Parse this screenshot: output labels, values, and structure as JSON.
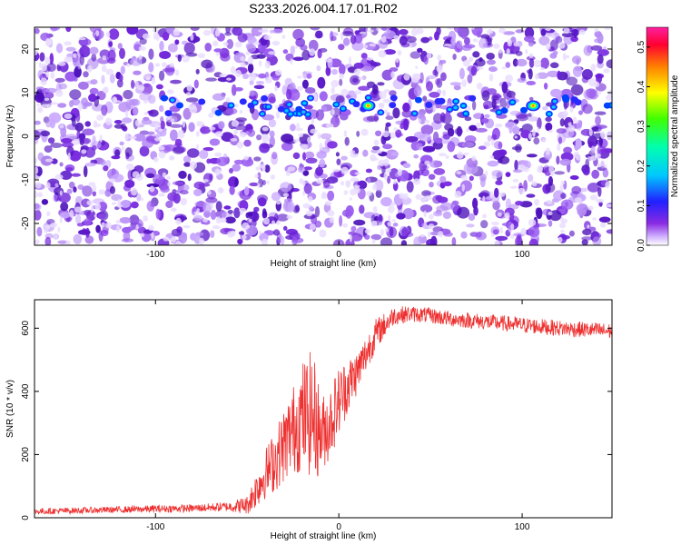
{
  "title": "S233.2026.004.17.01.R02",
  "chart_data": [
    {
      "type": "heatmap",
      "xlabel": "Height of straight line (km)",
      "ylabel": "Frequency (Hz)",
      "xlim": [
        -166,
        149
      ],
      "ylim": [
        -25,
        25
      ],
      "x_ticks": [
        -100,
        0,
        100
      ],
      "y_ticks": [
        -20,
        -10,
        0,
        10,
        20
      ],
      "colorbar": {
        "label": "Normalized spectral amplitude",
        "range": [
          0.0,
          0.55
        ],
        "ticks": [
          "0.0",
          "0.1",
          "0.2",
          "0.3",
          "0.4",
          "0.5"
        ],
        "colors": [
          "#ffffff",
          "#8a2be2",
          "#2020ff",
          "#00c8ff",
          "#00ff80",
          "#ffff00",
          "#ff8000",
          "#ff0030",
          "#ff00a0"
        ]
      },
      "features": {
        "band_frequency_hz": 7,
        "band_x_range_km": [
          -100,
          149
        ],
        "peak_points": [
          {
            "x": 16,
            "freq": 7,
            "amplitude": 0.45
          },
          {
            "x": 106,
            "freq": 7,
            "amplitude": 0.45
          }
        ]
      }
    },
    {
      "type": "line",
      "xlabel": "Height of straight line (km)",
      "ylabel": "SNR (10 * v/v)",
      "xlim": [
        -166,
        149
      ],
      "ylim": [
        0,
        690
      ],
      "x_ticks": [
        -100,
        0,
        100
      ],
      "y_ticks": [
        0,
        200,
        400,
        600
      ],
      "color": "#ff3030",
      "series": [
        {
          "x": [
            -166,
            -150,
            -125,
            -100,
            -80,
            -60,
            -50,
            -45,
            -40,
            -35,
            -30,
            -25,
            -20,
            -15,
            -12,
            -10,
            -5,
            0,
            5,
            10,
            15,
            20,
            25,
            30,
            40,
            50,
            60,
            80,
            100,
            120,
            149
          ],
          "y": [
            20,
            22,
            25,
            28,
            30,
            35,
            40,
            90,
            140,
            180,
            230,
            280,
            320,
            330,
            300,
            260,
            300,
            370,
            420,
            460,
            520,
            580,
            610,
            640,
            645,
            640,
            630,
            620,
            610,
            600,
            590
          ],
          "amp": [
            10,
            10,
            10,
            12,
            12,
            15,
            30,
            60,
            80,
            100,
            120,
            140,
            180,
            200,
            180,
            120,
            120,
            110,
            90,
            70,
            60,
            50,
            40,
            30,
            25,
            25,
            25,
            25,
            25,
            25,
            25
          ]
        }
      ]
    }
  ]
}
